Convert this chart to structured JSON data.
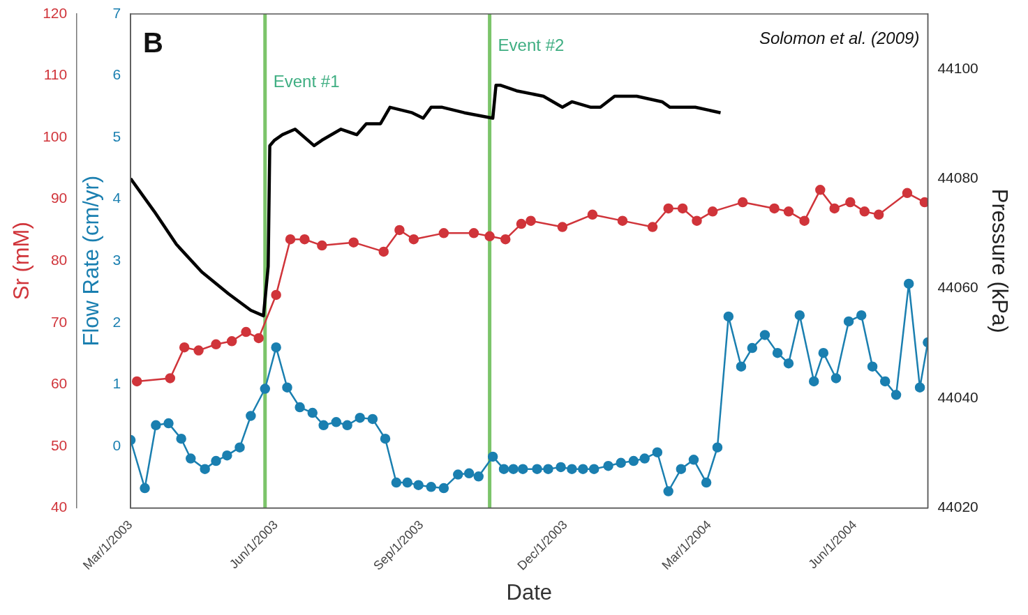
{
  "chart_data": {
    "type": "line",
    "xlabel": "Date",
    "ylabel": "Flow Rate (cm/yr)",
    "y2label": "Pressure (kPa)",
    "y3label": "Sr (mM)",
    "annotations": [
      "B",
      "Solomon et al. (2009)"
    ],
    "xlim": [
      "2003-03-01",
      "2004-07-17"
    ],
    "xticks": [
      {
        "value": "2003-03-01",
        "label": "Mar/1/2003"
      },
      {
        "value": "2003-06-01",
        "label": "Jun/1/2003"
      },
      {
        "value": "2003-09-01",
        "label": "Sep/1/2003"
      },
      {
        "value": "2003-12-01",
        "label": "Dec/1/2003"
      },
      {
        "value": "2004-03-01",
        "label": "Mar/1/2004"
      },
      {
        "value": "2004-06-01",
        "label": "Jun/1/2004"
      }
    ],
    "ylim": [
      -1,
      7
    ],
    "yticks": [
      0,
      1,
      2,
      3,
      4,
      5,
      6,
      7
    ],
    "y2lim": [
      44020,
      44110
    ],
    "y2ticks": [
      44020,
      44040,
      44060,
      44080,
      44100
    ],
    "y3lim": [
      40,
      120
    ],
    "y3ticks": [
      40,
      50,
      60,
      70,
      80,
      90,
      100,
      110,
      120
    ],
    "ref_lines": [
      {
        "axis": "x",
        "value": "2003-05-25",
        "label": "Event #1",
        "color": "#7cc46a"
      },
      {
        "axis": "x",
        "value": "2003-10-14",
        "label": "Event #2",
        "color": "#7cc46a"
      }
    ],
    "series": [
      {
        "color": "#000000",
        "axis": "y2",
        "marker": "none",
        "x": [
          "2003-03-01",
          "2003-03-16",
          "2003-03-30",
          "2003-04-15",
          "2003-05-02",
          "2003-05-16",
          "2003-05-24",
          "2003-05-27",
          "2003-05-28",
          "2003-05-31",
          "2003-06-05",
          "2003-06-13",
          "2003-06-25",
          "2003-06-30",
          "2003-07-12",
          "2003-07-22",
          "2003-07-28",
          "2003-08-06",
          "2003-08-12",
          "2003-08-26",
          "2003-09-02",
          "2003-09-07",
          "2003-09-14",
          "2003-09-28",
          "2003-10-16",
          "2003-10-18",
          "2003-10-21",
          "2003-10-31",
          "2003-11-17",
          "2003-11-29",
          "2003-12-05",
          "2003-12-17",
          "2003-12-23",
          "2004-01-01",
          "2004-01-15",
          "2004-01-31",
          "2004-02-05",
          "2004-02-21",
          "2004-03-08"
        ],
        "values": [
          44080,
          44074,
          44068,
          44063,
          44059,
          44056,
          44055,
          44064,
          44086,
          44087,
          44088,
          44089,
          44086,
          44087,
          44089,
          44088,
          44090,
          44090,
          44093,
          44092,
          44091,
          44093,
          44093,
          44092,
          44091,
          44097,
          44097,
          44096,
          44095,
          44093,
          44094,
          44093,
          44093,
          44095,
          44095,
          44094,
          44093,
          44093,
          44092
        ]
      },
      {
        "color": "#d0343a",
        "axis": "y3",
        "marker": "circle",
        "x": [
          "2003-03-05",
          "2003-03-26",
          "2003-04-04",
          "2003-04-13",
          "2003-04-24",
          "2003-05-04",
          "2003-05-13",
          "2003-05-21",
          "2003-06-01",
          "2003-06-10",
          "2003-06-19",
          "2003-06-30",
          "2003-07-20",
          "2003-08-08",
          "2003-08-18",
          "2003-08-27",
          "2003-09-15",
          "2003-10-04",
          "2003-10-14",
          "2003-10-24",
          "2003-11-03",
          "2003-11-09",
          "2003-11-29",
          "2003-12-18",
          "2004-01-06",
          "2004-01-25",
          "2004-02-04",
          "2004-02-13",
          "2004-02-22",
          "2004-03-03",
          "2004-03-22",
          "2004-04-11",
          "2004-04-20",
          "2004-04-30",
          "2004-05-10",
          "2004-05-19",
          "2004-05-29",
          "2004-06-07",
          "2004-06-16",
          "2004-07-04",
          "2004-07-15"
        ],
        "values": [
          60.5,
          61,
          66,
          65.5,
          66.5,
          67,
          68.5,
          67.5,
          74.5,
          83.5,
          83.5,
          82.5,
          83,
          81.5,
          85,
          83.5,
          84.5,
          84.5,
          84,
          83.5,
          86,
          86.5,
          85.5,
          87.5,
          86.5,
          85.5,
          88.5,
          88.5,
          86.5,
          88,
          89.5,
          88.5,
          88,
          86.5,
          91.5,
          88.5,
          89.5,
          88,
          87.5,
          91,
          89.5
        ]
      },
      {
        "color": "#1a7fb0",
        "marker": "circle",
        "x": [
          "2003-03-01",
          "2003-03-10",
          "2003-03-17",
          "2003-03-25",
          "2003-04-02",
          "2003-04-08",
          "2003-04-17",
          "2003-04-24",
          "2003-05-01",
          "2003-05-09",
          "2003-05-16",
          "2003-05-25",
          "2003-06-01",
          "2003-06-08",
          "2003-06-16",
          "2003-06-24",
          "2003-07-01",
          "2003-07-09",
          "2003-07-16",
          "2003-07-24",
          "2003-08-01",
          "2003-08-09",
          "2003-08-16",
          "2003-08-23",
          "2003-08-30",
          "2003-09-07",
          "2003-09-15",
          "2003-09-24",
          "2003-10-01",
          "2003-10-07",
          "2003-10-16",
          "2003-10-23",
          "2003-10-29",
          "2003-11-04",
          "2003-11-13",
          "2003-11-20",
          "2003-11-28",
          "2003-12-05",
          "2003-12-12",
          "2003-12-19",
          "2003-12-28",
          "2004-01-05",
          "2004-01-13",
          "2004-01-20",
          "2004-01-28",
          "2004-02-04",
          "2004-02-12",
          "2004-02-20",
          "2004-02-28",
          "2004-03-06",
          "2004-03-13",
          "2004-03-21",
          "2004-03-28",
          "2004-04-05",
          "2004-04-13",
          "2004-04-20",
          "2004-04-27",
          "2004-05-06",
          "2004-05-12",
          "2004-05-20",
          "2004-05-28",
          "2004-06-05",
          "2004-06-12",
          "2004-06-20",
          "2004-06-27",
          "2004-07-05",
          "2004-07-12",
          "2004-07-17"
        ],
        "values": [
          0.1,
          -0.68,
          0.34,
          0.37,
          0.12,
          -0.2,
          -0.37,
          -0.24,
          -0.15,
          -0.02,
          0.49,
          0.93,
          1.6,
          0.95,
          0.63,
          0.54,
          0.34,
          0.39,
          0.34,
          0.46,
          0.44,
          0.12,
          -0.59,
          -0.59,
          -0.63,
          -0.66,
          -0.68,
          -0.46,
          -0.44,
          -0.49,
          -0.17,
          -0.37,
          -0.37,
          -0.37,
          -0.37,
          -0.37,
          -0.34,
          -0.37,
          -0.37,
          -0.37,
          -0.32,
          -0.27,
          -0.24,
          -0.2,
          -0.1,
          -0.73,
          -0.37,
          -0.22,
          -0.59,
          -0.02,
          2.1,
          1.29,
          1.59,
          1.8,
          1.51,
          1.34,
          2.12,
          1.05,
          1.51,
          1.1,
          2.02,
          2.12,
          1.29,
          1.05,
          0.83,
          2.63,
          0.95,
          1.68
        ]
      }
    ]
  }
}
